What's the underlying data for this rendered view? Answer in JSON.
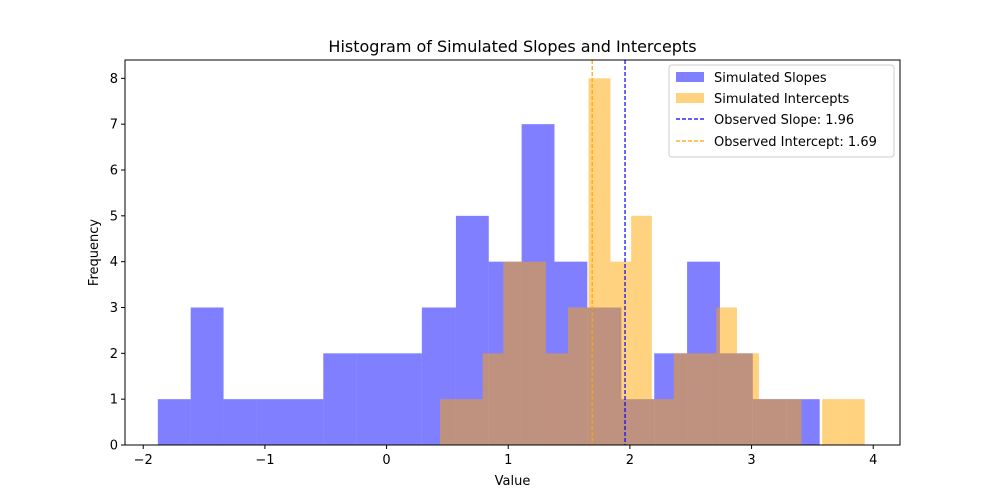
{
  "chart_data": {
    "type": "bar",
    "title": "Histogram of Simulated Slopes and Intercepts",
    "xlabel": "Value",
    "ylabel": "Frequency",
    "xlim": [
      -2.15,
      4.22
    ],
    "ylim": [
      0,
      8.4
    ],
    "xticks": [
      -2,
      -1,
      0,
      1,
      2,
      3,
      4
    ],
    "yticks": [
      0,
      1,
      2,
      3,
      4,
      5,
      6,
      7,
      8
    ],
    "grid": false,
    "legend_position": "upper right",
    "series": [
      {
        "name": "Simulated Slopes",
        "kind": "histogram",
        "color": "#0000ff",
        "opacity": 0.5,
        "bins": [
          {
            "x0": -1.88,
            "x1": -1.61,
            "count": 1
          },
          {
            "x0": -1.61,
            "x1": -1.34,
            "count": 3
          },
          {
            "x0": -1.34,
            "x1": -1.07,
            "count": 1
          },
          {
            "x0": -1.07,
            "x1": -0.79,
            "count": 1
          },
          {
            "x0": -0.79,
            "x1": -0.52,
            "count": 1
          },
          {
            "x0": -0.52,
            "x1": -0.25,
            "count": 2
          },
          {
            "x0": -0.25,
            "x1": 0.02,
            "count": 2
          },
          {
            "x0": 0.02,
            "x1": 0.29,
            "count": 2
          },
          {
            "x0": 0.29,
            "x1": 0.57,
            "count": 3
          },
          {
            "x0": 0.57,
            "x1": 0.84,
            "count": 5
          },
          {
            "x0": 0.84,
            "x1": 1.11,
            "count": 4
          },
          {
            "x0": 1.11,
            "x1": 1.38,
            "count": 7
          },
          {
            "x0": 1.38,
            "x1": 1.65,
            "count": 4
          },
          {
            "x0": 1.65,
            "x1": 1.93,
            "count": 3
          },
          {
            "x0": 1.93,
            "x1": 2.2,
            "count": 1
          },
          {
            "x0": 2.2,
            "x1": 2.47,
            "count": 2
          },
          {
            "x0": 2.47,
            "x1": 2.74,
            "count": 4
          },
          {
            "x0": 2.74,
            "x1": 3.01,
            "count": 2
          },
          {
            "x0": 3.01,
            "x1": 3.29,
            "count": 1
          },
          {
            "x0": 3.29,
            "x1": 3.56,
            "count": 1
          }
        ]
      },
      {
        "name": "Simulated Intercepts",
        "kind": "histogram",
        "color": "#ffa500",
        "opacity": 0.5,
        "bins": [
          {
            "x0": 0.44,
            "x1": 0.61,
            "count": 1
          },
          {
            "x0": 0.61,
            "x1": 0.79,
            "count": 1
          },
          {
            "x0": 0.79,
            "x1": 0.96,
            "count": 2
          },
          {
            "x0": 0.96,
            "x1": 1.14,
            "count": 4
          },
          {
            "x0": 1.14,
            "x1": 1.31,
            "count": 4
          },
          {
            "x0": 1.31,
            "x1": 1.49,
            "count": 2
          },
          {
            "x0": 1.49,
            "x1": 1.66,
            "count": 3
          },
          {
            "x0": 1.66,
            "x1": 1.84,
            "count": 8
          },
          {
            "x0": 1.84,
            "x1": 2.01,
            "count": 4
          },
          {
            "x0": 2.01,
            "x1": 2.18,
            "count": 5
          },
          {
            "x0": 2.18,
            "x1": 2.36,
            "count": 1
          },
          {
            "x0": 2.36,
            "x1": 2.53,
            "count": 2
          },
          {
            "x0": 2.53,
            "x1": 2.71,
            "count": 2
          },
          {
            "x0": 2.71,
            "x1": 2.88,
            "count": 3
          },
          {
            "x0": 2.88,
            "x1": 3.06,
            "count": 2
          },
          {
            "x0": 3.06,
            "x1": 3.23,
            "count": 1
          },
          {
            "x0": 3.23,
            "x1": 3.41,
            "count": 1
          },
          {
            "x0": 3.41,
            "x1": 3.58,
            "count": 0
          },
          {
            "x0": 3.58,
            "x1": 3.75,
            "count": 1
          },
          {
            "x0": 3.75,
            "x1": 3.93,
            "count": 1
          }
        ]
      }
    ],
    "reference_lines": [
      {
        "name": "Observed Slope: 1.96",
        "x": 1.96,
        "color": "#0000ff",
        "style": "dashed"
      },
      {
        "name": "Observed Intercept: 1.69",
        "x": 1.69,
        "color": "#ffa500",
        "style": "dashed"
      }
    ]
  }
}
